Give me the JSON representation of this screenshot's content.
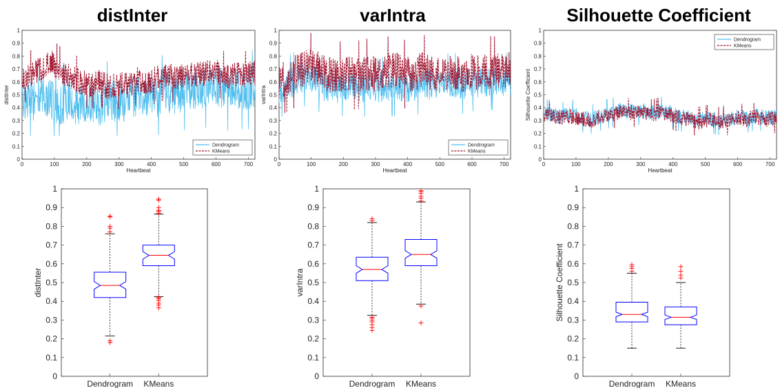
{
  "colors": {
    "dendrogram": "#4dbeee",
    "kmeans": "#a2142f",
    "box": "#0000ff",
    "median": "#ff0000",
    "outlier": "#ff0000",
    "whisker": "#000000"
  },
  "chart_data": [
    {
      "type": "line",
      "title": "distInter",
      "xlabel": "Heartbeat",
      "ylabel": "distInter",
      "xlim": [
        0,
        720
      ],
      "ylim": [
        0,
        1
      ],
      "xticks": [
        "0",
        "100",
        "200",
        "300",
        "400",
        "500",
        "600",
        "700"
      ],
      "yticks": [
        "0",
        "0.1",
        "0.2",
        "0.3",
        "0.4",
        "0.5",
        "0.6",
        "0.7",
        "0.8",
        "0.9",
        "1"
      ],
      "legend_position": "bottom-right",
      "series": [
        {
          "name": "Dendrogram",
          "style": "solid",
          "x": [
            0,
            30,
            60,
            90,
            120,
            150,
            180,
            210,
            240,
            270,
            300,
            330,
            360,
            390,
            420,
            450,
            480,
            510,
            540,
            570,
            600,
            630,
            660,
            690,
            720
          ],
          "y": [
            0.48,
            0.45,
            0.5,
            0.46,
            0.42,
            0.44,
            0.4,
            0.45,
            0.41,
            0.47,
            0.43,
            0.46,
            0.5,
            0.48,
            0.49,
            0.52,
            0.5,
            0.54,
            0.53,
            0.55,
            0.58,
            0.52,
            0.55,
            0.53,
            0.55
          ],
          "amplitude": 0.16,
          "min": 0.18,
          "max": 0.86
        },
        {
          "name": "KMeans",
          "style": "dashed",
          "x": [
            0,
            30,
            60,
            90,
            120,
            150,
            180,
            210,
            240,
            270,
            300,
            330,
            360,
            390,
            420,
            450,
            480,
            510,
            540,
            570,
            600,
            630,
            660,
            690,
            720
          ],
          "y": [
            0.62,
            0.66,
            0.7,
            0.75,
            0.68,
            0.64,
            0.6,
            0.58,
            0.6,
            0.56,
            0.58,
            0.57,
            0.62,
            0.6,
            0.63,
            0.65,
            0.62,
            0.66,
            0.65,
            0.67,
            0.68,
            0.64,
            0.66,
            0.65,
            0.67
          ],
          "amplitude": 0.1,
          "min": 0.36,
          "max": 0.95
        }
      ]
    },
    {
      "type": "line",
      "title": "varIntra",
      "xlabel": "Heartbeat",
      "ylabel": "varIntra",
      "xlim": [
        0,
        720
      ],
      "ylim": [
        0,
        1
      ],
      "xticks": [
        "0",
        "100",
        "200",
        "300",
        "400",
        "500",
        "600",
        "700"
      ],
      "yticks": [
        "0",
        "0.1",
        "0.2",
        "0.3",
        "0.4",
        "0.5",
        "0.6",
        "0.7",
        "0.8",
        "0.9",
        "1"
      ],
      "legend_position": "bottom-right",
      "series": [
        {
          "name": "Dendrogram",
          "style": "solid",
          "x": [
            0,
            30,
            60,
            90,
            120,
            150,
            180,
            210,
            240,
            270,
            300,
            330,
            360,
            390,
            420,
            450,
            480,
            510,
            540,
            570,
            600,
            630,
            660,
            690,
            720
          ],
          "y": [
            0.55,
            0.58,
            0.62,
            0.65,
            0.6,
            0.56,
            0.55,
            0.57,
            0.54,
            0.56,
            0.55,
            0.57,
            0.56,
            0.55,
            0.57,
            0.58,
            0.57,
            0.59,
            0.6,
            0.58,
            0.6,
            0.59,
            0.61,
            0.6,
            0.6
          ],
          "amplitude": 0.12,
          "min": 0.25,
          "max": 0.84
        },
        {
          "name": "KMeans",
          "style": "dashed",
          "x": [
            0,
            30,
            60,
            90,
            120,
            150,
            180,
            210,
            240,
            270,
            300,
            330,
            360,
            390,
            420,
            450,
            480,
            510,
            540,
            570,
            600,
            630,
            660,
            690,
            720
          ],
          "y": [
            0.6,
            0.64,
            0.68,
            0.72,
            0.7,
            0.66,
            0.64,
            0.66,
            0.65,
            0.67,
            0.66,
            0.68,
            0.7,
            0.66,
            0.67,
            0.7,
            0.66,
            0.68,
            0.67,
            0.66,
            0.68,
            0.67,
            0.69,
            0.68,
            0.7
          ],
          "amplitude": 0.14,
          "min": 0.28,
          "max": 1.0
        }
      ]
    },
    {
      "type": "line",
      "title": "Silhouette Coefficient",
      "xlabel": "Heartbeat",
      "ylabel": "Silhouette Coefficient",
      "xlim": [
        0,
        720
      ],
      "ylim": [
        0,
        1
      ],
      "xticks": [
        "0",
        "100",
        "200",
        "300",
        "400",
        "500",
        "600",
        "700"
      ],
      "yticks": [
        "0",
        "0.1",
        "0.2",
        "0.3",
        "0.4",
        "0.5",
        "0.6",
        "0.7",
        "0.8",
        "0.9",
        "1"
      ],
      "legend_position": "top-right",
      "series": [
        {
          "name": "Dendrogram",
          "style": "solid",
          "x": [
            0,
            30,
            60,
            90,
            120,
            150,
            180,
            210,
            240,
            270,
            300,
            330,
            360,
            390,
            420,
            450,
            480,
            510,
            540,
            570,
            600,
            630,
            660,
            690,
            720
          ],
          "y": [
            0.36,
            0.34,
            0.33,
            0.35,
            0.32,
            0.31,
            0.34,
            0.36,
            0.38,
            0.37,
            0.38,
            0.36,
            0.37,
            0.36,
            0.33,
            0.32,
            0.3,
            0.32,
            0.3,
            0.31,
            0.33,
            0.32,
            0.34,
            0.32,
            0.33
          ],
          "amplitude": 0.06,
          "min": 0.15,
          "max": 0.6
        },
        {
          "name": "KMeans",
          "style": "dashed",
          "x": [
            0,
            30,
            60,
            90,
            120,
            150,
            180,
            210,
            240,
            270,
            300,
            330,
            360,
            390,
            420,
            450,
            480,
            510,
            540,
            570,
            600,
            630,
            660,
            690,
            720
          ],
          "y": [
            0.34,
            0.33,
            0.32,
            0.33,
            0.31,
            0.3,
            0.33,
            0.35,
            0.37,
            0.36,
            0.37,
            0.35,
            0.36,
            0.35,
            0.32,
            0.31,
            0.29,
            0.31,
            0.29,
            0.3,
            0.32,
            0.31,
            0.33,
            0.31,
            0.32
          ],
          "amplitude": 0.06,
          "min": 0.15,
          "max": 0.59
        }
      ]
    },
    {
      "type": "box",
      "ylabel": "distInter",
      "ylim": [
        0,
        1
      ],
      "yticks": [
        "0",
        "0.1",
        "0.2",
        "0.3",
        "0.4",
        "0.5",
        "0.6",
        "0.7",
        "0.8",
        "0.9",
        "1"
      ],
      "categories": [
        "Dendrogram",
        "KMeans"
      ],
      "boxes": [
        {
          "q1": 0.42,
          "median": 0.485,
          "q3": 0.555,
          "notch_low": 0.465,
          "notch_high": 0.505,
          "whisker_low": 0.215,
          "whisker_high": 0.76,
          "outliers": [
            0.18,
            0.19,
            0.77,
            0.79,
            0.8,
            0.85,
            0.855
          ]
        },
        {
          "q1": 0.59,
          "median": 0.645,
          "q3": 0.7,
          "notch_low": 0.625,
          "notch_high": 0.665,
          "whisker_low": 0.425,
          "whisker_high": 0.865,
          "outliers": [
            0.365,
            0.38,
            0.39,
            0.405,
            0.415,
            0.42,
            0.87,
            0.88,
            0.885,
            0.9,
            0.94,
            0.945
          ]
        }
      ]
    },
    {
      "type": "box",
      "ylabel": "varIntra",
      "ylim": [
        0,
        1
      ],
      "yticks": [
        "0",
        "0.1",
        "0.2",
        "0.3",
        "0.4",
        "0.5",
        "0.6",
        "0.7",
        "0.8",
        "0.9",
        "1"
      ],
      "categories": [
        "Dendrogram",
        "KMeans"
      ],
      "boxes": [
        {
          "q1": 0.51,
          "median": 0.57,
          "q3": 0.635,
          "notch_low": 0.55,
          "notch_high": 0.59,
          "whisker_low": 0.325,
          "whisker_high": 0.82,
          "outliers": [
            0.245,
            0.26,
            0.275,
            0.29,
            0.3,
            0.31,
            0.315,
            0.83,
            0.84
          ]
        },
        {
          "q1": 0.59,
          "median": 0.65,
          "q3": 0.73,
          "notch_low": 0.63,
          "notch_high": 0.67,
          "whisker_low": 0.385,
          "whisker_high": 0.93,
          "outliers": [
            0.285,
            0.375,
            0.935,
            0.95,
            0.96,
            0.975,
            0.985,
            0.99
          ]
        }
      ]
    },
    {
      "type": "box",
      "ylabel": "Silhouette Coefficient",
      "ylim": [
        0,
        1
      ],
      "yticks": [
        "0",
        "0.1",
        "0.2",
        "0.3",
        "0.4",
        "0.5",
        "0.6",
        "0.7",
        "0.8",
        "0.9",
        "1"
      ],
      "categories": [
        "Dendrogram",
        "KMeans"
      ],
      "boxes": [
        {
          "q1": 0.29,
          "median": 0.33,
          "q3": 0.395,
          "notch_low": 0.318,
          "notch_high": 0.342,
          "whisker_low": 0.15,
          "whisker_high": 0.55,
          "outliers": [
            0.56,
            0.575,
            0.585,
            0.595
          ]
        },
        {
          "q1": 0.275,
          "median": 0.315,
          "q3": 0.37,
          "notch_low": 0.303,
          "notch_high": 0.327,
          "whisker_low": 0.15,
          "whisker_high": 0.5,
          "outliers": [
            0.525,
            0.54,
            0.56,
            0.585
          ]
        }
      ]
    }
  ]
}
